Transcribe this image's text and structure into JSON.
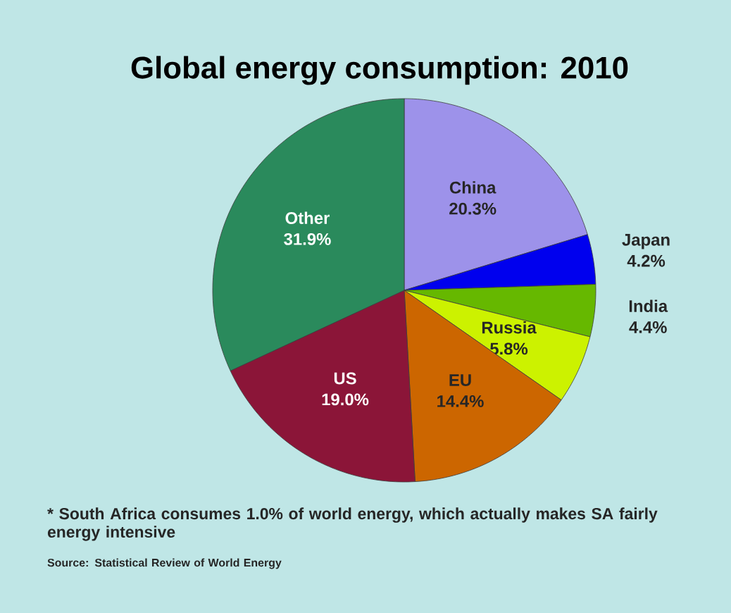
{
  "chart_data": {
    "type": "pie",
    "title": "Global energy consumption: 2010",
    "categories": [
      "China",
      "Japan",
      "India",
      "Russia",
      "EU",
      "US",
      "Other"
    ],
    "values": [
      20.3,
      4.2,
      4.4,
      5.8,
      14.4,
      19.0,
      31.9
    ],
    "value_labels": [
      "20.3%",
      "4.2%",
      "4.4%",
      "5.8%",
      "14.4%",
      "19.0%",
      "31.9%"
    ],
    "colors": [
      "#9d92ea",
      "#0000ee",
      "#66b800",
      "#ccf200",
      "#cc6600",
      "#8b1538",
      "#2a8a5c"
    ],
    "annotations": [
      "* South Africa consumes 1.0% of world energy, which actually makes SA fairly energy intensive",
      "Source: Statistical Review of World Energy"
    ]
  }
}
